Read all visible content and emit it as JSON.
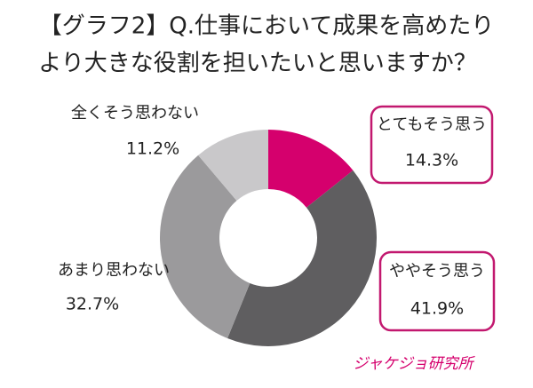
{
  "chart_data": {
    "type": "donut",
    "title": [
      "【グラフ2】Q.仕事において成果を高めたり",
      "より大きな役割を担いたいと思いますか？"
    ],
    "categories": [
      "とてもそう思う",
      "ややそう思う",
      "あまり思わない",
      "全くそう思わない"
    ],
    "values": [
      14.3,
      41.9,
      32.7,
      11.2
    ],
    "value_labels": [
      "14.3%",
      "41.9%",
      "32.7%",
      "11.2%"
    ],
    "colors": [
      "#d5006d",
      "#5f5e60",
      "#9b9a9c",
      "#c9c8ca"
    ],
    "highlight_color": "#c2186f",
    "source": "ジャケジョ研究所"
  }
}
